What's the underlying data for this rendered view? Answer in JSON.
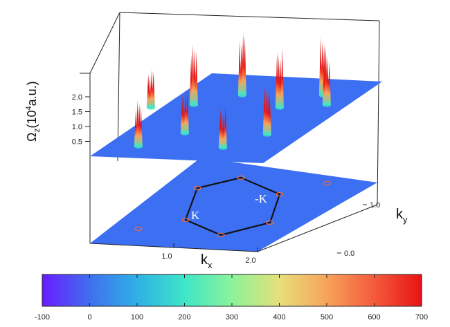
{
  "chart_data": {
    "type": "surface",
    "z_axis": {
      "label_main": "Ω",
      "label_sub": "z",
      "label_unit_pre": "(10",
      "label_unit_sup": "4",
      "label_unit_post": "a.u.)",
      "ticks": [
        "0.5",
        "1.0",
        "1.5",
        "2.0"
      ],
      "tick_values": [
        0.5,
        1.0,
        1.5,
        2.0
      ]
    },
    "x_axis": {
      "label_main": "k",
      "label_sub": "x",
      "ticks": [
        "1.0",
        "2.0"
      ],
      "tick_values": [
        1.0,
        2.0
      ]
    },
    "y_axis": {
      "label_main": "k",
      "label_sub": "y",
      "ticks": [
        "0.0",
        "1.0"
      ],
      "tick_values": [
        0.0,
        1.0
      ]
    },
    "annotations": [
      "K",
      "-K"
    ],
    "colorbar": {
      "ticks": [
        "-100",
        "0",
        "100",
        "200",
        "300",
        "400",
        "500",
        "600",
        "700"
      ],
      "tick_values": [
        -100,
        0,
        100,
        200,
        300,
        400,
        500,
        600,
        700
      ],
      "colors": [
        "#6a1bff",
        "#3f6ff0",
        "#2fb0e6",
        "#3ee6c8",
        "#8cf39a",
        "#e6e07a",
        "#f7a35a",
        "#f35a3e",
        "#e81414"
      ]
    },
    "peak_values": [
      2.05,
      2.1,
      2.0,
      1.95,
      1.55,
      1.5,
      1.4,
      1.65,
      1.7,
      1.3
    ]
  }
}
